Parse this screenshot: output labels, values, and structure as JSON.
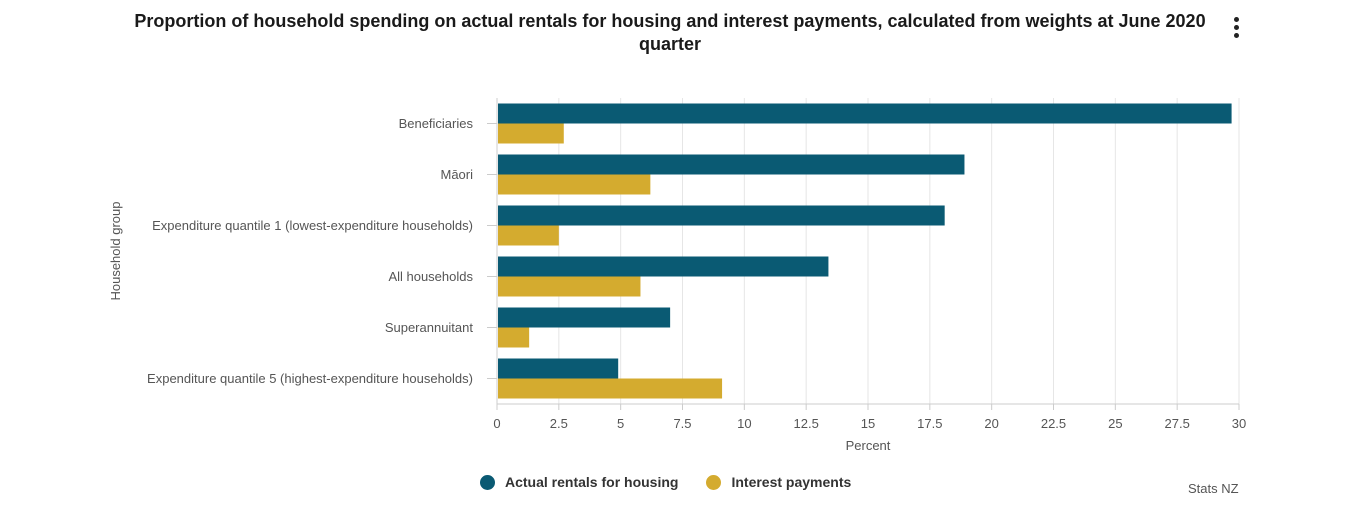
{
  "header": {
    "menu_icon": "more-vertical-icon"
  },
  "chart_data": {
    "type": "bar",
    "orientation": "horizontal",
    "title": "Proportion of household spending on actual rentals for housing and interest payments, calculated from weights at June 2020 quarter",
    "xlabel": "Percent",
    "ylabel": "Household group",
    "categories": [
      "Beneficiaries",
      "Māori",
      "Expenditure quantile 1 (lowest-expenditure households)",
      "All households",
      "Superannuitant",
      "Expenditure quantile 5 (highest-expenditure households)"
    ],
    "series": [
      {
        "name": "Actual rentals for housing",
        "color": "#0a5a73",
        "values": [
          29.7,
          18.9,
          18.1,
          13.4,
          7.0,
          4.9
        ]
      },
      {
        "name": "Interest payments",
        "color": "#d4ab2f",
        "values": [
          2.7,
          6.2,
          2.5,
          5.8,
          1.3,
          9.1
        ]
      }
    ],
    "xlim": [
      0,
      30
    ],
    "xticks": [
      "0",
      "2.5",
      "5",
      "7.5",
      "10",
      "12.5",
      "15",
      "17.5",
      "20",
      "22.5",
      "25",
      "27.5",
      "30"
    ],
    "grid": true,
    "legend_position": "bottom"
  },
  "credits": "Stats NZ"
}
